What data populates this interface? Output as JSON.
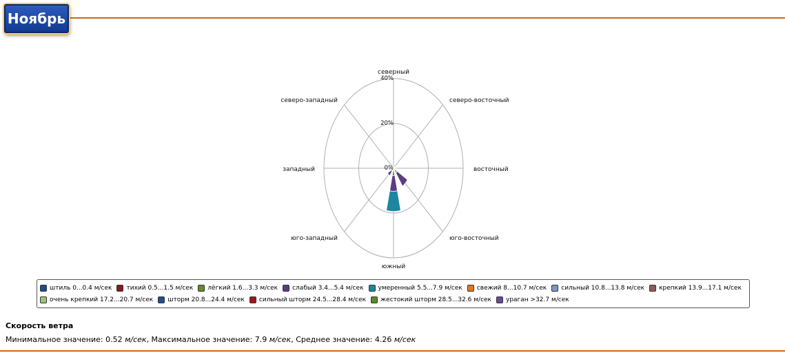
{
  "header": {
    "month_title": "Ноябрь"
  },
  "chart_data": {
    "type": "wind-rose",
    "directions": [
      "северный",
      "северо-восточный",
      "восточный",
      "юго-восточный",
      "южный",
      "юго-западный",
      "западный",
      "северо-западный"
    ],
    "radial_ticks": [
      "0%",
      "20%",
      "40%"
    ],
    "rmax": 40,
    "grid": true,
    "legend_position": "bottom",
    "series": [
      {
        "name": "штиль 0...0.4 м/сек",
        "color": "#1a4d8c",
        "values": [
          0,
          0,
          0,
          0,
          0,
          0,
          0,
          0
        ]
      },
      {
        "name": "тихий 0.5...1.5 м/сек",
        "color": "#8b1a1a",
        "values": [
          0,
          0,
          0,
          0,
          0.8,
          0,
          0,
          0
        ]
      },
      {
        "name": "лёгкий 1.6...3.3 м/сек",
        "color": "#5e8f2a",
        "values": [
          0.6,
          1.5,
          0.8,
          2.5,
          2.5,
          1.5,
          0.5,
          0.4
        ]
      },
      {
        "name": "слабый 3.4...5.4 м/сек",
        "color": "#5e3b86",
        "values": [
          0,
          0,
          0.5,
          7,
          7,
          2.5,
          0.6,
          0.3
        ]
      },
      {
        "name": "умеренный 5.5...7.9 м/сек",
        "color": "#1f86a0",
        "values": [
          0,
          0,
          0,
          0,
          9,
          0,
          0,
          0
        ]
      },
      {
        "name": "свежий 8...10.7 м/сек",
        "color": "#e07820",
        "values": [
          0,
          0,
          0,
          0,
          0,
          0,
          0,
          0
        ]
      },
      {
        "name": "сильный 10.8...13.8 м/сек",
        "color": "#7a96cc",
        "values": [
          0,
          0,
          0,
          0,
          0,
          0,
          0,
          0
        ]
      },
      {
        "name": "крепкий 13.9...17.1 м/сек",
        "color": "#8f5a60",
        "values": [
          0,
          0,
          0,
          0,
          0,
          0,
          0,
          0
        ]
      },
      {
        "name": "очень крепкий 17.2...20.7 м/сек",
        "color": "#9ec27a",
        "values": [
          0,
          0,
          0,
          0,
          0,
          0,
          0,
          0
        ]
      },
      {
        "name": "шторм 20.8...24.4 м/сек",
        "color": "#1f4f8f",
        "values": [
          0,
          0,
          0,
          0,
          0,
          0,
          0,
          0
        ]
      },
      {
        "name": "сильный шторм 24.5...28.4 м/сек",
        "color": "#a01818",
        "values": [
          0,
          0,
          0,
          0,
          0,
          0,
          0,
          0
        ]
      },
      {
        "name": "жестокий шторм 28.5...32.6 м/сек",
        "color": "#5a8a28",
        "values": [
          0,
          0,
          0,
          0,
          0,
          0,
          0,
          0
        ]
      },
      {
        "name": "ураган >32.7 м/сек",
        "color": "#6a4a92",
        "values": [
          0,
          0,
          0,
          0,
          0,
          0,
          0,
          0
        ]
      }
    ]
  },
  "stats": {
    "title": "Скорость ветра",
    "min_label": "Минимальное значение: ",
    "min_value": "0.52",
    "max_label": ", Максимальное значение: ",
    "max_value": "7.9",
    "avg_label": ", Среднее значение: ",
    "avg_value": "4.26",
    "unit": "м/сек"
  }
}
